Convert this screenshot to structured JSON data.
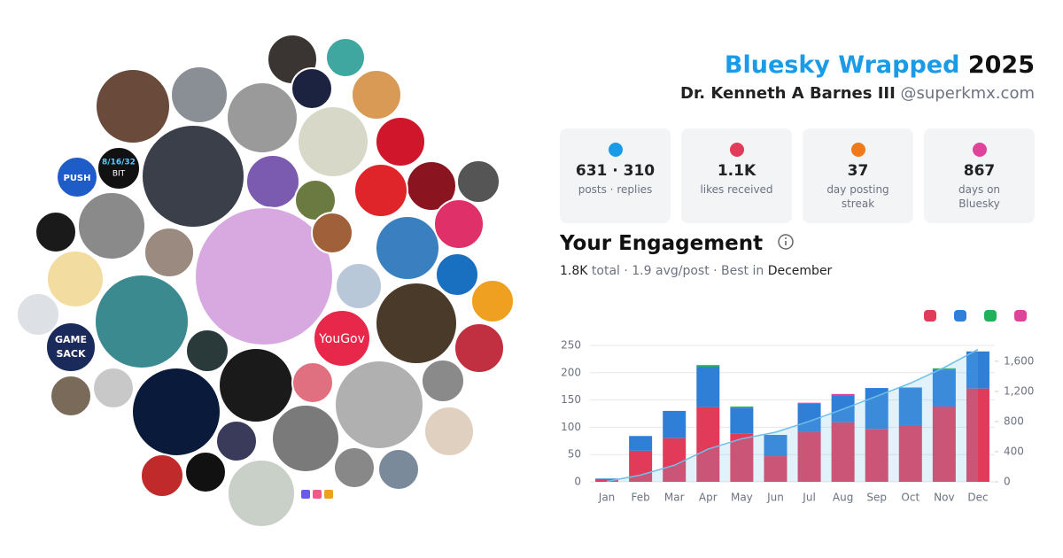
{
  "header": {
    "title": "Bluesky Wrapped",
    "year": "2025",
    "name": "Dr. Kenneth A Barnes III",
    "handle": "@superkmx.com"
  },
  "stats": [
    {
      "value": "631 · 310",
      "label": "posts · replies"
    },
    {
      "value": "1.1K",
      "label": "likes received"
    },
    {
      "value": "37",
      "label": "day posting streak"
    },
    {
      "value": "867",
      "label": "days on Bluesky"
    }
  ],
  "engagement": {
    "title": "Your Engagement",
    "total": "1.8K",
    "summary": "total · 1.9 avg/post · Best in",
    "best_month": "December"
  },
  "avatar_labels": [
    "PUSH",
    "8/16/32",
    "BIT",
    "GAME",
    "SACK",
    "YouGov"
  ],
  "chart_data": {
    "type": "bar",
    "stacked": true,
    "categories": [
      "Jan",
      "Feb",
      "Mar",
      "Apr",
      "May",
      "Jun",
      "Jul",
      "Aug",
      "Sep",
      "Oct",
      "Nov",
      "Dec"
    ],
    "series": [
      {
        "color": "#e23b5a",
        "values": [
          4,
          57,
          80,
          137,
          89,
          47,
          91,
          109,
          97,
          104,
          138,
          171
        ]
      },
      {
        "color": "#2f7fd6",
        "values": [
          2,
          27,
          50,
          74,
          47,
          39,
          52,
          50,
          75,
          68,
          68,
          68
        ]
      },
      {
        "color": "#1fb25a",
        "values": [
          0,
          0,
          0,
          3,
          2,
          0,
          0,
          0,
          0,
          1,
          2,
          0
        ]
      },
      {
        "color": "#e0449a",
        "values": [
          0,
          0,
          0,
          0,
          0,
          0,
          2,
          2,
          0,
          0,
          0,
          0
        ]
      },
      {
        "type": "line",
        "axis": "y2",
        "color": "#6fbfea",
        "values": [
          6,
          90,
          220,
          434,
          572,
          658,
          803,
          964,
          1136,
          1309,
          1517,
          1756
        ]
      }
    ],
    "ylim": [
      0,
      250
    ],
    "yticks": [
      0,
      50,
      100,
      150,
      200,
      250
    ],
    "y2lim": [
      0,
      1810
    ],
    "y2ticks": [
      0,
      400,
      800,
      {
        "value": 1200,
        "label": "1,200"
      },
      {
        "value": 1600,
        "label": "1,600"
      }
    ],
    "grid": true
  }
}
